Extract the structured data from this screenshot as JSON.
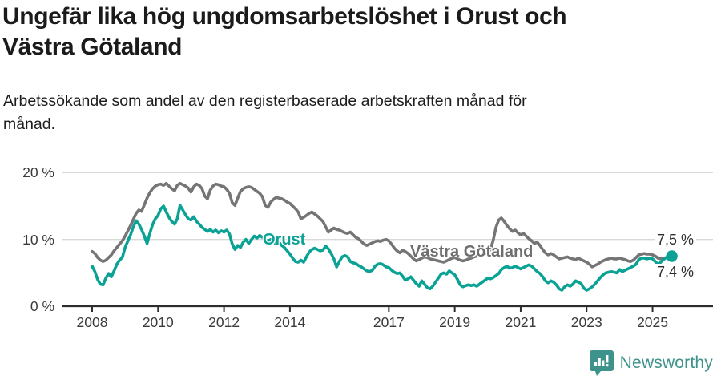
{
  "header": {
    "title": "Ungefär lika hög ungdomsarbetslöshet i Orust och Västra Götaland",
    "subtitle": "Arbetssökande som andel av den registerbaserade arbetskraften månad för månad."
  },
  "chart_data": {
    "type": "line",
    "title": "Ungefär lika hög ungdomsarbetslöshet i Orust och Västra Götaland",
    "subtitle": "Arbetssökande som andel av den registerbaserade arbetskraften månad för månad.",
    "unit": "%",
    "x_start_year": 2008,
    "x_step_months": 1,
    "x_end_label": "2025 (Aug)",
    "ylim": [
      0,
      20
    ],
    "grid": "horizontal",
    "y_ticks": [
      {
        "value": 0,
        "label": "0 %"
      },
      {
        "value": 10,
        "label": "10 %"
      },
      {
        "value": 20,
        "label": "20 %"
      }
    ],
    "x_ticks": [
      {
        "year": 2008,
        "label": "2008"
      },
      {
        "year": 2010,
        "label": "2010"
      },
      {
        "year": 2012,
        "label": "2012"
      },
      {
        "year": 2014,
        "label": "2014"
      },
      {
        "year": 2017,
        "label": "2017"
      },
      {
        "year": 2019,
        "label": "2019"
      },
      {
        "year": 2021,
        "label": "2021"
      },
      {
        "year": 2023,
        "label": "2023"
      },
      {
        "year": 2025,
        "label": "2025"
      }
    ],
    "series": [
      {
        "name": "Orust",
        "color": "#0aa295",
        "end_label": "7,5 %",
        "end_dot": true,
        "values": [
          6.0,
          5.2,
          4.0,
          3.3,
          3.2,
          4.2,
          4.9,
          4.4,
          5.3,
          6.3,
          6.9,
          7.3,
          8.8,
          9.8,
          10.7,
          11.9,
          12.8,
          12.3,
          11.5,
          10.5,
          9.4,
          10.9,
          12.2,
          13.1,
          13.6,
          14.6,
          15.0,
          14.1,
          13.3,
          12.7,
          12.3,
          13.1,
          15.1,
          14.4,
          13.7,
          13.1,
          12.9,
          13.4,
          12.7,
          12.3,
          11.8,
          11.5,
          11.2,
          11.5,
          11.1,
          11.4,
          11.0,
          11.3,
          11.1,
          11.4,
          10.8,
          9.3,
          8.5,
          9.1,
          8.8,
          9.6,
          10.0,
          9.4,
          10.0,
          10.5,
          10.2,
          10.6,
          10.3,
          10.0,
          9.7,
          10.0,
          9.6,
          9.3,
          9.6,
          9.1,
          8.8,
          8.3,
          7.8,
          7.2,
          6.7,
          6.6,
          6.9,
          6.6,
          7.4,
          8.1,
          8.5,
          8.7,
          8.5,
          8.3,
          8.4,
          9.0,
          8.6,
          7.9,
          7.1,
          5.9,
          6.7,
          7.4,
          7.6,
          7.4,
          6.7,
          6.5,
          6.4,
          6.1,
          5.9,
          5.6,
          5.3,
          5.2,
          5.4,
          6.0,
          6.3,
          6.4,
          6.2,
          5.9,
          5.8,
          5.4,
          5.1,
          4.9,
          5.0,
          4.5,
          3.9,
          4.1,
          4.4,
          3.9,
          3.4,
          3.0,
          3.8,
          3.3,
          2.8,
          2.6,
          3.0,
          3.6,
          4.2,
          4.8,
          5.0,
          4.8,
          5.3,
          5.0,
          4.7,
          4.0,
          3.2,
          2.9,
          3.1,
          3.2,
          3.1,
          3.2,
          3.0,
          3.3,
          3.6,
          3.9,
          4.2,
          4.1,
          4.3,
          4.6,
          4.9,
          5.5,
          5.8,
          6.0,
          5.7,
          5.8,
          6.0,
          5.8,
          5.6,
          5.8,
          6.0,
          6.2,
          6.0,
          5.6,
          5.2,
          4.9,
          4.4,
          3.8,
          3.5,
          3.8,
          3.6,
          3.2,
          2.6,
          2.4,
          2.9,
          3.2,
          3.0,
          3.3,
          3.8,
          3.6,
          3.4,
          2.7,
          2.4,
          2.6,
          2.9,
          3.3,
          3.8,
          4.3,
          4.7,
          5.0,
          5.1,
          5.2,
          5.1,
          5.0,
          5.5,
          5.2,
          5.4,
          5.6,
          5.8,
          6.0,
          6.3,
          7.0,
          7.2,
          7.2,
          7.1,
          7.2,
          7.1,
          6.7,
          6.3,
          6.6,
          7.0,
          7.3,
          7.4,
          7.5
        ]
      },
      {
        "name": "Västra Götaland",
        "color": "#757575",
        "end_label": "7,4 %",
        "end_dot": false,
        "values": [
          8.2,
          7.9,
          7.3,
          6.9,
          6.7,
          6.9,
          7.3,
          7.7,
          8.3,
          8.8,
          9.3,
          9.8,
          10.5,
          11.3,
          12.1,
          13.0,
          13.9,
          14.4,
          14.2,
          15.2,
          16.2,
          17.0,
          17.6,
          18.0,
          18.2,
          18.3,
          18.1,
          18.4,
          18.0,
          17.6,
          17.3,
          18.1,
          18.4,
          18.2,
          18.0,
          17.7,
          17.1,
          17.9,
          18.3,
          18.1,
          17.6,
          16.5,
          16.1,
          17.4,
          18.0,
          18.3,
          18.2,
          18.0,
          17.9,
          17.5,
          16.9,
          15.5,
          15.1,
          16.2,
          17.2,
          17.6,
          17.8,
          17.9,
          17.8,
          17.5,
          17.2,
          16.9,
          16.4,
          15.1,
          14.8,
          15.6,
          16.0,
          16.3,
          16.2,
          16.1,
          15.9,
          15.6,
          15.4,
          15.0,
          14.6,
          14.1,
          13.1,
          13.3,
          13.6,
          13.9,
          14.1,
          13.8,
          13.5,
          13.1,
          12.7,
          11.9,
          11.1,
          11.4,
          11.7,
          11.5,
          11.4,
          11.2,
          11.0,
          10.9,
          11.1,
          10.7,
          10.3,
          10.1,
          9.7,
          9.3,
          9.1,
          9.3,
          9.5,
          9.7,
          9.8,
          9.7,
          9.9,
          10.0,
          9.8,
          9.3,
          8.7,
          8.3,
          8.0,
          8.4,
          8.2,
          7.9,
          7.5,
          7.1,
          6.8,
          7.0,
          7.2,
          7.4,
          7.3,
          7.1,
          7.0,
          6.9,
          6.8,
          6.7,
          6.6,
          6.8,
          7.0,
          7.2,
          7.3,
          7.1,
          6.9,
          6.8,
          6.9,
          7.1,
          7.2,
          7.4,
          7.5,
          7.6,
          7.7,
          7.9,
          8.1,
          8.5,
          9.9,
          11.8,
          12.9,
          13.2,
          12.7,
          12.1,
          11.6,
          11.2,
          11.4,
          11.0,
          10.7,
          10.9,
          10.5,
          10.1,
          9.8,
          9.4,
          9.6,
          9.1,
          8.5,
          8.0,
          7.7,
          7.9,
          7.7,
          7.4,
          7.1,
          7.2,
          7.3,
          7.4,
          7.2,
          7.1,
          7.0,
          7.2,
          7.0,
          6.8,
          6.6,
          6.3,
          5.9,
          6.1,
          6.3,
          6.6,
          6.8,
          7.0,
          7.1,
          7.2,
          7.1,
          7.1,
          7.2,
          7.1,
          7.0,
          6.8,
          6.7,
          6.9,
          7.3,
          7.7,
          7.8,
          7.9,
          7.8,
          7.8,
          7.7,
          7.5,
          7.2,
          7.1,
          7.2,
          7.3,
          7.35,
          7.4
        ]
      }
    ],
    "annotations": {
      "orust_label": "Orust",
      "vg_label": "Västra Götaland",
      "end_value_top": "7,5 %",
      "end_value_bottom": "7,4 %"
    },
    "legend_position": "inline-labels"
  },
  "footer": {
    "brand": "Newsworthy"
  },
  "colors": {
    "orust": "#0aa295",
    "vastra_gotaland": "#757575",
    "gridline": "#d9d9d9",
    "axis": "#2d2d2d",
    "text": "#3a3a3a",
    "brand_teal": "#3e928c"
  }
}
